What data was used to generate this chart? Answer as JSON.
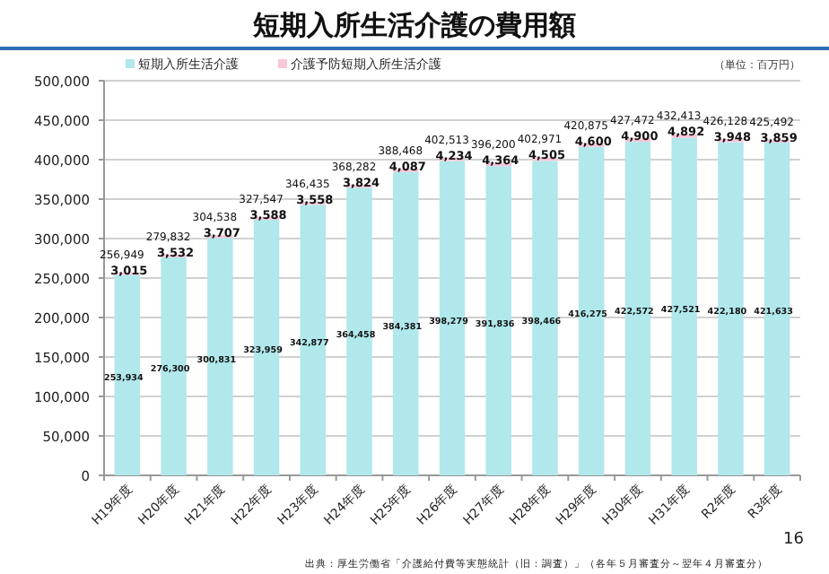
{
  "chart_data": {
    "type": "bar",
    "stacked": true,
    "title": "短期入所生活介護の費用額",
    "categories": [
      "H19年度",
      "H20年度",
      "H21年度",
      "H22年度",
      "H23年度",
      "H24年度",
      "H25年度",
      "H26年度",
      "H27年度",
      "H28年度",
      "H29年度",
      "H30年度",
      "H31年度",
      "R2年度",
      "R3年度"
    ],
    "series": [
      {
        "name": "短期入所生活介護",
        "color": "#b0e8ec",
        "values": [
          253934,
          276300,
          300831,
          323959,
          342877,
          364458,
          384381,
          398279,
          391836,
          398466,
          416275,
          422572,
          427521,
          422180,
          421633
        ],
        "value_labels": [
          "253,934",
          "276,300",
          "300,831",
          "323,959",
          "342,877",
          "364,458",
          "384,381",
          "398,279",
          "391,836",
          "398,466",
          "416,275",
          "422,572",
          "427,521",
          "422,180",
          "421,633"
        ]
      },
      {
        "name": "介護予防短期入所生活介護",
        "color": "#f7c6d8",
        "values": [
          3015,
          3532,
          3707,
          3588,
          3558,
          3824,
          4087,
          4234,
          4364,
          4505,
          4600,
          4900,
          4892,
          3948,
          3859
        ],
        "value_labels": [
          "3,015",
          "3,532",
          "3,707",
          "3,588",
          "3,558",
          "3,824",
          "4,087",
          "4,234",
          "4,364",
          "4,505",
          "4,600",
          "4,900",
          "4,892",
          "3,948",
          "3,859"
        ]
      }
    ],
    "totals": [
      "256,949",
      "279,832",
      "304,538",
      "327,547",
      "346,435",
      "368,282",
      "388,468",
      "402,513",
      "396,200",
      "402,971",
      "420,875",
      "427,472",
      "432,413",
      "426,128",
      "425,492"
    ],
    "ylim": [
      0,
      500000
    ],
    "yticks": [
      {
        "value": 0,
        "label": "0"
      },
      {
        "value": 50000,
        "label": "50,000"
      },
      {
        "value": 100000,
        "label": "100,000"
      },
      {
        "value": 150000,
        "label": "150,000"
      },
      {
        "value": 200000,
        "label": "200,000"
      },
      {
        "value": 250000,
        "label": "250,000"
      },
      {
        "value": 300000,
        "label": "300,000"
      },
      {
        "value": 350000,
        "label": "350,000"
      },
      {
        "value": 400000,
        "label": "400,000"
      },
      {
        "value": 450000,
        "label": "450,000"
      },
      {
        "value": 500000,
        "label": "500,000"
      }
    ],
    "grid": "y",
    "legend": "top left",
    "annotations": [
      "（単位：百万円）",
      "16",
      "出典：厚生労働省「介護給付費等実態統計（旧：調査）」（各年５月審査分～翌年４月審査分）"
    ]
  }
}
